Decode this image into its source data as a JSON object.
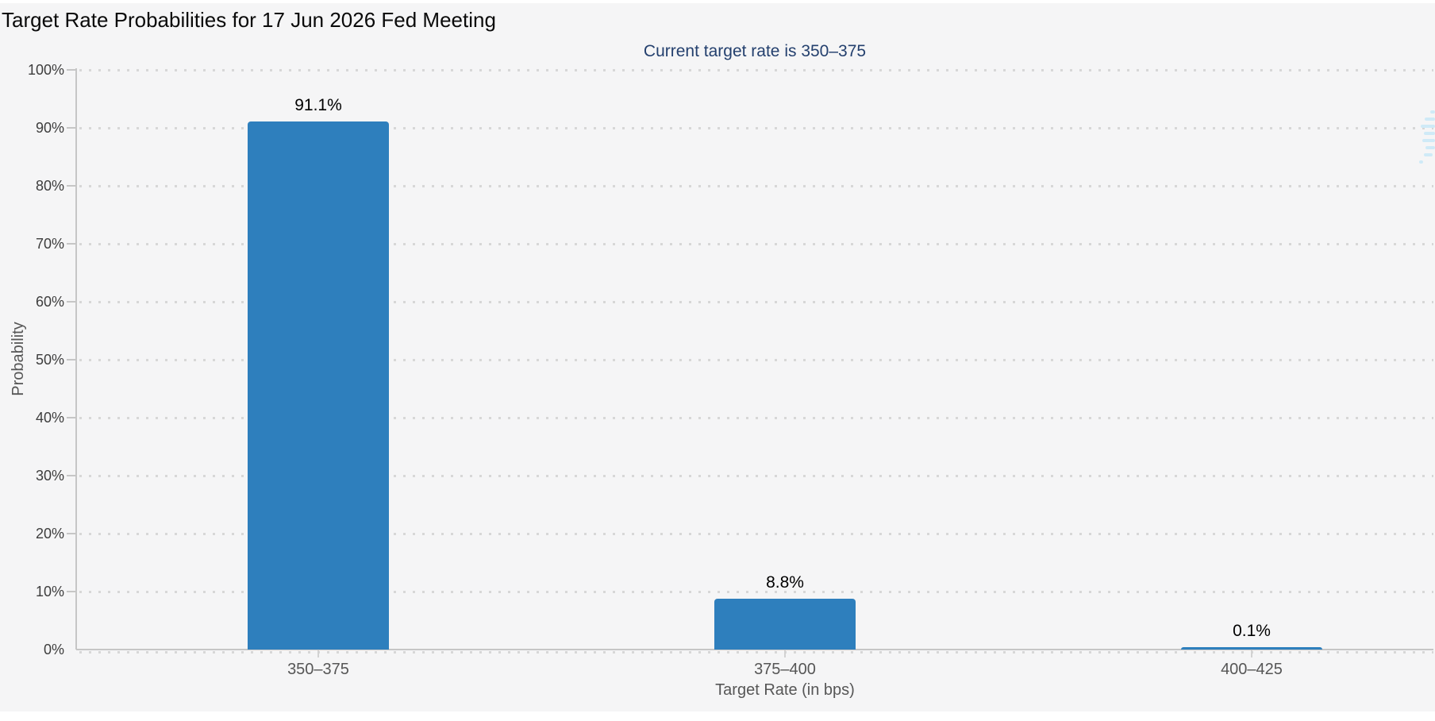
{
  "chart_data": {
    "type": "bar",
    "title": "Target Rate Probabilities for 17 Jun 2026 Fed Meeting",
    "subtitle": "Current target rate is 350–375",
    "xlabel": "Target Rate (in bps)",
    "ylabel": "Probability",
    "categories": [
      "350–375",
      "375–400",
      "400–425"
    ],
    "values": [
      91.1,
      8.8,
      0.1
    ],
    "value_labels": [
      "91.1%",
      "8.8%",
      "0.1%"
    ],
    "y_tick_labels": [
      "0%",
      "10%",
      "20%",
      "30%",
      "40%",
      "50%",
      "60%",
      "70%",
      "80%",
      "90%",
      "100%"
    ],
    "ylim": [
      0,
      100
    ],
    "y_tick_step": 10,
    "grid": "horizontal-dotted",
    "legend": "none",
    "colors": {
      "bar": "#2e7fbd",
      "title": "#0a0a0a",
      "subtitle": "#24406e",
      "axis_tick_text": "#3d3d3d",
      "category_text": "#565656",
      "axis_line": "#c6c6c6",
      "grid_dot": "#d7d7d7",
      "chart_bg": "#f5f5f6",
      "value_label_text": "#000000",
      "watermark": "#cfeaf7"
    }
  }
}
